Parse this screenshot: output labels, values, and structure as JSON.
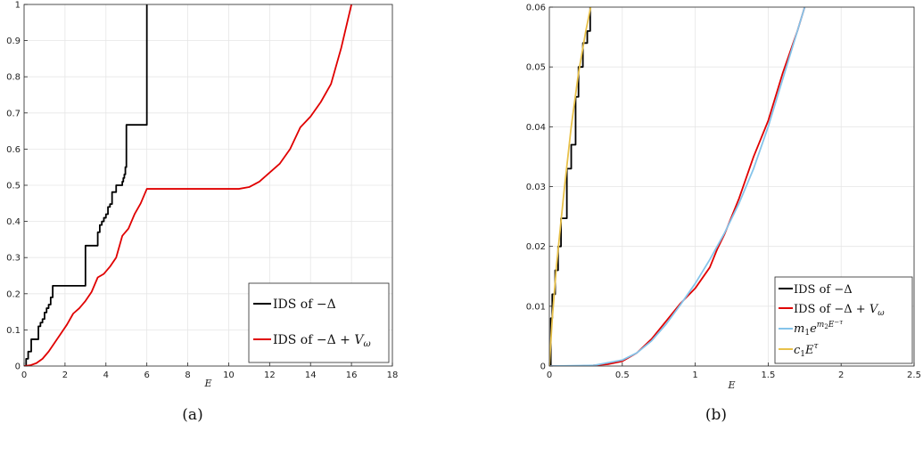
{
  "chart_data": [
    {
      "type": "line",
      "caption": "(a)",
      "xlabel": "E",
      "xlim": [
        0,
        18
      ],
      "ylim": [
        0,
        1
      ],
      "xticks": [
        0,
        2,
        4,
        6,
        8,
        10,
        12,
        14,
        16,
        18
      ],
      "yticks": [
        0,
        0.1,
        0.2,
        0.3,
        0.4,
        0.5,
        0.6,
        0.7,
        0.8,
        0.9,
        1
      ],
      "xtick_labels": [
        "0",
        "2",
        "4",
        "6",
        "8",
        "10",
        "12",
        "14",
        "16",
        "18"
      ],
      "ytick_labels": [
        "0",
        "0.1",
        "0.2",
        "0.3",
        "0.4",
        "0.5",
        "0.6",
        "0.7",
        "0.8",
        "0.9",
        "1"
      ],
      "grid": true,
      "legend_position": "bottom-right",
      "series": [
        {
          "name": "IDS of −Δ",
          "color": "#000000",
          "step": true,
          "x": [
            0,
            0.1,
            0.2,
            0.35,
            0.7,
            0.8,
            0.9,
            1.0,
            1.1,
            1.2,
            1.3,
            1.4,
            3.0,
            3.6,
            3.7,
            3.8,
            3.9,
            4.0,
            4.1,
            4.2,
            4.3,
            4.5,
            4.8,
            4.85,
            4.9,
            4.95,
            5.0,
            6.0,
            6.0
          ],
          "y": [
            0,
            0.02,
            0.04,
            0.074,
            0.11,
            0.12,
            0.13,
            0.148,
            0.16,
            0.17,
            0.19,
            0.222,
            0.333,
            0.37,
            0.39,
            0.4,
            0.41,
            0.42,
            0.44,
            0.448,
            0.481,
            0.5,
            0.51,
            0.52,
            0.53,
            0.55,
            0.667,
            0.667,
            1.0
          ]
        },
        {
          "name": "IDS of −Δ + V_ω",
          "color": "#e00000",
          "step": false,
          "x": [
            0,
            0.3,
            0.6,
            0.9,
            1.2,
            1.5,
            1.8,
            2.1,
            2.4,
            2.7,
            3.0,
            3.3,
            3.6,
            3.9,
            4.2,
            4.5,
            4.8,
            5.1,
            5.4,
            5.7,
            6.0,
            6.5,
            8.0,
            9.5,
            10.5,
            11.0,
            11.5,
            12.0,
            12.5,
            13.0,
            13.5,
            14.0,
            14.5,
            15.0,
            15.5,
            16.0
          ],
          "y": [
            0,
            0.002,
            0.008,
            0.02,
            0.04,
            0.065,
            0.09,
            0.115,
            0.145,
            0.16,
            0.18,
            0.205,
            0.245,
            0.255,
            0.275,
            0.3,
            0.36,
            0.38,
            0.42,
            0.45,
            0.49,
            0.49,
            0.49,
            0.49,
            0.49,
            0.495,
            0.51,
            0.535,
            0.56,
            0.6,
            0.66,
            0.69,
            0.73,
            0.78,
            0.88,
            1.0
          ]
        }
      ]
    },
    {
      "type": "line",
      "caption": "(b)",
      "xlabel": "E",
      "xlim": [
        0,
        2.5
      ],
      "ylim": [
        0,
        0.06
      ],
      "xticks": [
        0,
        0.5,
        1,
        1.5,
        2,
        2.5
      ],
      "yticks": [
        0,
        0.01,
        0.02,
        0.03,
        0.04,
        0.05,
        0.06
      ],
      "xtick_labels": [
        "0",
        "0.5",
        "1",
        "1.5",
        "2",
        "2.5"
      ],
      "ytick_labels": [
        "0",
        "0.01",
        "0.02",
        "0.03",
        "0.04",
        "0.05",
        "0.06"
      ],
      "grid": true,
      "legend_position": "bottom-right",
      "series": [
        {
          "name": "IDS of −Δ",
          "color": "#000000",
          "step": true,
          "x": [
            0,
            0.01,
            0.02,
            0.04,
            0.06,
            0.08,
            0.1,
            0.12,
            0.15,
            0.18,
            0.2,
            0.23,
            0.26,
            0.28
          ],
          "y": [
            0,
            0.008,
            0.012,
            0.016,
            0.02,
            0.0247,
            0.0247,
            0.033,
            0.037,
            0.045,
            0.05,
            0.054,
            0.056,
            0.06
          ]
        },
        {
          "name": "IDS of −Δ + V_ω",
          "color": "#e00000",
          "step": false,
          "x": [
            0,
            0.2,
            0.3,
            0.4,
            0.5,
            0.6,
            0.7,
            0.8,
            0.9,
            1.0,
            1.1,
            1.15,
            1.2,
            1.3,
            1.4,
            1.5,
            1.6,
            1.7,
            1.75,
            1.8
          ],
          "y": [
            0,
            0,
            0.0001,
            0.0003,
            0.0008,
            0.0022,
            0.0045,
            0.0075,
            0.0105,
            0.013,
            0.0165,
            0.0195,
            0.022,
            0.028,
            0.035,
            0.041,
            0.049,
            0.056,
            0.06,
            0.062
          ]
        },
        {
          "name": "m₁e^{m₂E^{−τ}}",
          "color": "#85c4ea",
          "step": false,
          "x": [
            0,
            0.3,
            0.5,
            0.6,
            0.7,
            0.8,
            0.9,
            1.0,
            1.1,
            1.2,
            1.3,
            1.4,
            1.5,
            1.6,
            1.7,
            1.75,
            1.8
          ],
          "y": [
            0,
            0.0001,
            0.001,
            0.0022,
            0.0042,
            0.007,
            0.0103,
            0.0138,
            0.0178,
            0.0222,
            0.0272,
            0.033,
            0.04,
            0.048,
            0.056,
            0.06,
            0.063
          ]
        },
        {
          "name": "c₁E^τ",
          "color": "#e8c14a",
          "step": false,
          "x": [
            0,
            0.02,
            0.05,
            0.1,
            0.15,
            0.2,
            0.25,
            0.3
          ],
          "y": [
            0,
            0.008,
            0.017,
            0.029,
            0.04,
            0.049,
            0.056,
            0.062
          ]
        }
      ]
    }
  ]
}
